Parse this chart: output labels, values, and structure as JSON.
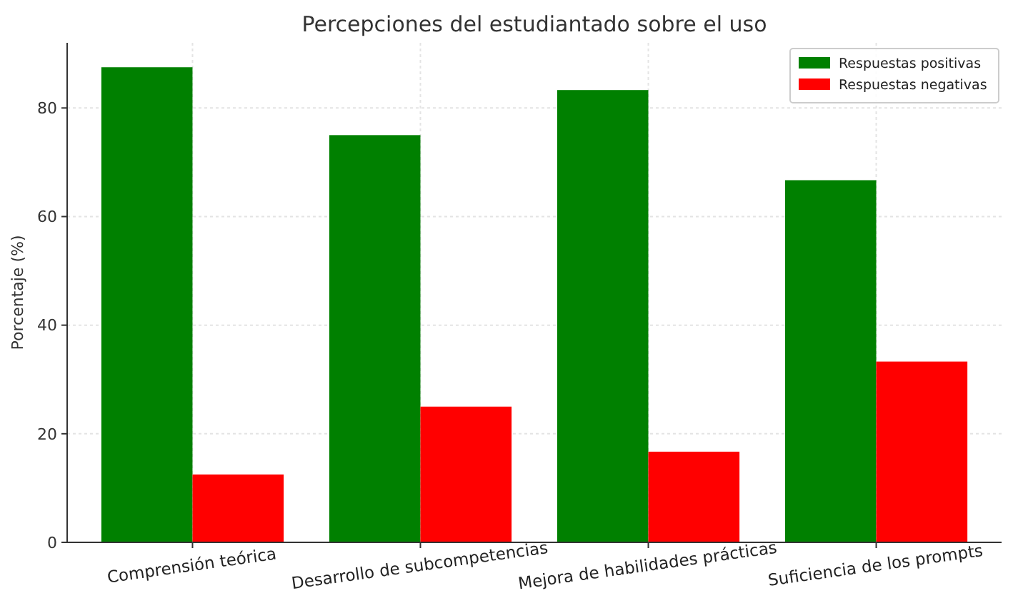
{
  "chart_data": {
    "type": "bar",
    "title": "Percepciones del estudiantado sobre el uso",
    "ylabel": "Porcentaje (%)",
    "categories": [
      "Comprensión teórica",
      "Desarrollo de subcompetencias",
      "Mejora de habilidades prácticas",
      "Suficiencia de los prompts"
    ],
    "series": [
      {
        "name": "Respuestas positivas",
        "color": "#008000",
        "values": [
          87.5,
          75,
          83.3,
          66.7
        ]
      },
      {
        "name": "Respuestas negativas",
        "color": "#ff0000",
        "values": [
          12.5,
          25,
          16.7,
          33.3
        ]
      }
    ],
    "ylim": [
      0,
      92
    ],
    "yticks": [
      0,
      20,
      40,
      60,
      80
    ],
    "grid": true,
    "legend": "top right"
  }
}
